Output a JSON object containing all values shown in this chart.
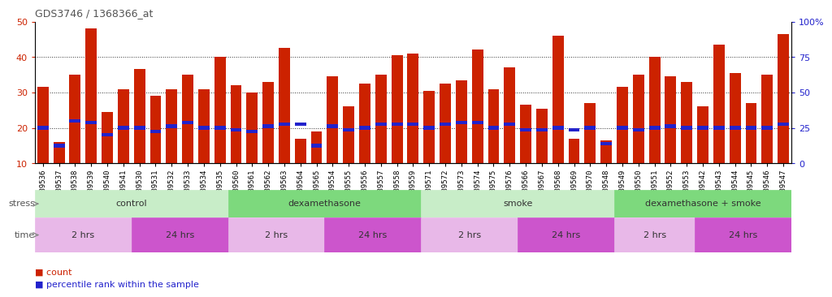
{
  "title": "GDS3746 / 1368366_at",
  "samples": [
    "GSM389536",
    "GSM389537",
    "GSM389538",
    "GSM389539",
    "GSM389540",
    "GSM389541",
    "GSM389530",
    "GSM389531",
    "GSM389532",
    "GSM389533",
    "GSM389534",
    "GSM389535",
    "GSM389560",
    "GSM389561",
    "GSM389562",
    "GSM389563",
    "GSM389564",
    "GSM389565",
    "GSM389554",
    "GSM389555",
    "GSM389556",
    "GSM389557",
    "GSM389558",
    "GSM389559",
    "GSM389571",
    "GSM389572",
    "GSM389573",
    "GSM389574",
    "GSM389575",
    "GSM389576",
    "GSM389566",
    "GSM389567",
    "GSM389568",
    "GSM389569",
    "GSM389570",
    "GSM389548",
    "GSM389549",
    "GSM389550",
    "GSM389551",
    "GSM389552",
    "GSM389553",
    "GSM389542",
    "GSM389543",
    "GSM389544",
    "GSM389545",
    "GSM389546",
    "GSM389547"
  ],
  "counts": [
    31.5,
    16.0,
    35.0,
    48.0,
    24.5,
    31.0,
    36.5,
    29.0,
    31.0,
    35.0,
    31.0,
    40.0,
    32.0,
    30.0,
    33.0,
    42.5,
    17.0,
    19.0,
    34.5,
    26.0,
    32.5,
    35.0,
    40.5,
    41.0,
    30.5,
    32.5,
    33.5,
    42.0,
    31.0,
    37.0,
    26.5,
    25.5,
    46.0,
    17.0,
    27.0,
    16.5,
    31.5,
    35.0,
    40.0,
    34.5,
    33.0,
    26.0,
    43.5,
    35.5,
    27.0,
    35.0,
    46.5
  ],
  "percentile_ranks": [
    20.0,
    15.0,
    22.0,
    21.5,
    18.0,
    20.0,
    20.0,
    19.0,
    20.5,
    21.5,
    20.0,
    20.0,
    19.5,
    19.0,
    20.5,
    21.0,
    21.0,
    15.0,
    20.5,
    19.5,
    20.0,
    21.0,
    21.0,
    21.0,
    20.0,
    21.0,
    21.5,
    21.5,
    20.0,
    21.0,
    19.5,
    19.5,
    20.0,
    19.5,
    20.0,
    15.5,
    20.0,
    19.5,
    20.0,
    20.5,
    20.0,
    20.0,
    20.0,
    20.0,
    20.0,
    20.0,
    21.0
  ],
  "stress_groups": [
    {
      "label": "control",
      "start": 0,
      "end": 12,
      "color": "#c8edc8"
    },
    {
      "label": "dexamethasone",
      "start": 12,
      "end": 24,
      "color": "#7dd97d"
    },
    {
      "label": "smoke",
      "start": 24,
      "end": 36,
      "color": "#c8edc8"
    },
    {
      "label": "dexamethasone + smoke",
      "start": 36,
      "end": 47,
      "color": "#7dd97d"
    }
  ],
  "time_groups": [
    {
      "label": "2 hrs",
      "start": 0,
      "end": 6,
      "color": "#e8b8e8"
    },
    {
      "label": "24 hrs",
      "start": 6,
      "end": 12,
      "color": "#cc55cc"
    },
    {
      "label": "2 hrs",
      "start": 12,
      "end": 18,
      "color": "#e8b8e8"
    },
    {
      "label": "24 hrs",
      "start": 18,
      "end": 24,
      "color": "#cc55cc"
    },
    {
      "label": "2 hrs",
      "start": 24,
      "end": 30,
      "color": "#e8b8e8"
    },
    {
      "label": "24 hrs",
      "start": 30,
      "end": 36,
      "color": "#cc55cc"
    },
    {
      "label": "2 hrs",
      "start": 36,
      "end": 41,
      "color": "#e8b8e8"
    },
    {
      "label": "24 hrs",
      "start": 41,
      "end": 47,
      "color": "#cc55cc"
    }
  ],
  "ylim_left": [
    10,
    50
  ],
  "ylim_right": [
    0,
    100
  ],
  "yticks_left": [
    10,
    20,
    30,
    40,
    50
  ],
  "yticks_right": [
    0,
    25,
    50,
    75,
    100
  ],
  "bar_color": "#cc2200",
  "percentile_color": "#2222cc",
  "bar_width": 0.7,
  "background_color": "#ffffff",
  "left_tick_color": "#cc2200",
  "right_tick_color": "#2222cc",
  "title_color": "#555555",
  "grid_dotted_color": "#333333",
  "xticklabel_bg": "#dddddd"
}
